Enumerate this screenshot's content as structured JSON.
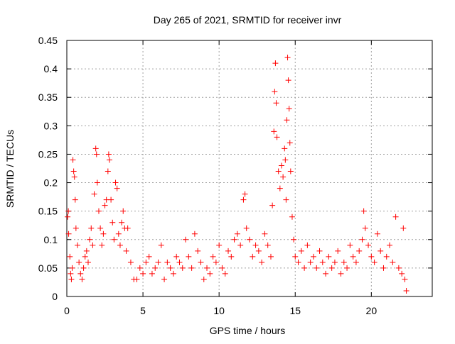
{
  "chart_data": {
    "type": "scatter",
    "title": "Day 265 of 2021, SRMTID for receiver invr",
    "xlabel": "GPS time / hours",
    "ylabel": "SRMTID / TECUs",
    "xlim": [
      0,
      24
    ],
    "ylim": [
      0,
      0.45
    ],
    "xticks": [
      0,
      5,
      10,
      15,
      20
    ],
    "yticks": [
      0,
      0.05,
      0.1,
      0.15,
      0.2,
      0.25,
      0.3,
      0.35,
      0.4,
      0.45
    ],
    "grid": true,
    "legend": "none",
    "marker": "+",
    "series": [
      {
        "color": "#ff0000",
        "points": [
          [
            0.05,
            0.14
          ],
          [
            0.1,
            0.15
          ],
          [
            0.12,
            0.11
          ],
          [
            0.2,
            0.07
          ],
          [
            0.25,
            0.04
          ],
          [
            0.3,
            0.03
          ],
          [
            0.35,
            0.05
          ],
          [
            0.4,
            0.24
          ],
          [
            0.45,
            0.22
          ],
          [
            0.5,
            0.21
          ],
          [
            0.55,
            0.17
          ],
          [
            0.6,
            0.12
          ],
          [
            0.7,
            0.09
          ],
          [
            0.8,
            0.06
          ],
          [
            0.9,
            0.04
          ],
          [
            1.0,
            0.03
          ],
          [
            1.1,
            0.05
          ],
          [
            1.2,
            0.07
          ],
          [
            1.3,
            0.08
          ],
          [
            1.4,
            0.06
          ],
          [
            1.5,
            0.1
          ],
          [
            1.6,
            0.12
          ],
          [
            1.7,
            0.09
          ],
          [
            1.8,
            0.18
          ],
          [
            1.9,
            0.26
          ],
          [
            1.95,
            0.25
          ],
          [
            2.0,
            0.2
          ],
          [
            2.1,
            0.15
          ],
          [
            2.2,
            0.12
          ],
          [
            2.3,
            0.09
          ],
          [
            2.4,
            0.11
          ],
          [
            2.5,
            0.16
          ],
          [
            2.6,
            0.17
          ],
          [
            2.7,
            0.22
          ],
          [
            2.75,
            0.25
          ],
          [
            2.8,
            0.24
          ],
          [
            2.9,
            0.17
          ],
          [
            3.0,
            0.13
          ],
          [
            3.1,
            0.1
          ],
          [
            3.2,
            0.2
          ],
          [
            3.3,
            0.19
          ],
          [
            3.4,
            0.11
          ],
          [
            3.5,
            0.09
          ],
          [
            3.6,
            0.13
          ],
          [
            3.7,
            0.15
          ],
          [
            3.8,
            0.12
          ],
          [
            3.9,
            0.08
          ],
          [
            4.0,
            0.12
          ],
          [
            4.2,
            0.06
          ],
          [
            4.4,
            0.03
          ],
          [
            4.6,
            0.03
          ],
          [
            4.8,
            0.05
          ],
          [
            5.0,
            0.04
          ],
          [
            5.2,
            0.06
          ],
          [
            5.4,
            0.07
          ],
          [
            5.6,
            0.04
          ],
          [
            5.8,
            0.05
          ],
          [
            6.0,
            0.06
          ],
          [
            6.2,
            0.09
          ],
          [
            6.4,
            0.03
          ],
          [
            6.6,
            0.06
          ],
          [
            6.8,
            0.05
          ],
          [
            7.0,
            0.04
          ],
          [
            7.2,
            0.07
          ],
          [
            7.4,
            0.06
          ],
          [
            7.6,
            0.05
          ],
          [
            7.8,
            0.1
          ],
          [
            8.0,
            0.07
          ],
          [
            8.2,
            0.05
          ],
          [
            8.4,
            0.11
          ],
          [
            8.6,
            0.08
          ],
          [
            8.8,
            0.06
          ],
          [
            9.0,
            0.03
          ],
          [
            9.2,
            0.05
          ],
          [
            9.4,
            0.04
          ],
          [
            9.6,
            0.07
          ],
          [
            9.8,
            0.06
          ],
          [
            10.0,
            0.09
          ],
          [
            10.2,
            0.05
          ],
          [
            10.4,
            0.04
          ],
          [
            10.6,
            0.08
          ],
          [
            10.8,
            0.07
          ],
          [
            11.0,
            0.1
          ],
          [
            11.2,
            0.11
          ],
          [
            11.4,
            0.09
          ],
          [
            11.6,
            0.17
          ],
          [
            11.7,
            0.18
          ],
          [
            11.8,
            0.12
          ],
          [
            12.0,
            0.1
          ],
          [
            12.2,
            0.07
          ],
          [
            12.4,
            0.09
          ],
          [
            12.6,
            0.08
          ],
          [
            12.8,
            0.06
          ],
          [
            13.0,
            0.11
          ],
          [
            13.2,
            0.09
          ],
          [
            13.4,
            0.07
          ],
          [
            13.5,
            0.16
          ],
          [
            13.6,
            0.29
          ],
          [
            13.65,
            0.36
          ],
          [
            13.7,
            0.41
          ],
          [
            13.75,
            0.34
          ],
          [
            13.8,
            0.28
          ],
          [
            13.9,
            0.22
          ],
          [
            14.0,
            0.19
          ],
          [
            14.1,
            0.23
          ],
          [
            14.2,
            0.21
          ],
          [
            14.3,
            0.26
          ],
          [
            14.35,
            0.24
          ],
          [
            14.4,
            0.17
          ],
          [
            14.45,
            0.31
          ],
          [
            14.5,
            0.42
          ],
          [
            14.55,
            0.38
          ],
          [
            14.6,
            0.33
          ],
          [
            14.65,
            0.27
          ],
          [
            14.7,
            0.22
          ],
          [
            14.8,
            0.14
          ],
          [
            14.9,
            0.1
          ],
          [
            15.0,
            0.07
          ],
          [
            15.2,
            0.06
          ],
          [
            15.4,
            0.08
          ],
          [
            15.6,
            0.05
          ],
          [
            15.8,
            0.09
          ],
          [
            16.0,
            0.06
          ],
          [
            16.2,
            0.07
          ],
          [
            16.4,
            0.05
          ],
          [
            16.6,
            0.08
          ],
          [
            16.8,
            0.06
          ],
          [
            17.0,
            0.04
          ],
          [
            17.2,
            0.07
          ],
          [
            17.4,
            0.05
          ],
          [
            17.6,
            0.06
          ],
          [
            17.8,
            0.08
          ],
          [
            18.0,
            0.04
          ],
          [
            18.2,
            0.06
          ],
          [
            18.4,
            0.05
          ],
          [
            18.6,
            0.09
          ],
          [
            18.8,
            0.07
          ],
          [
            19.0,
            0.06
          ],
          [
            19.2,
            0.08
          ],
          [
            19.4,
            0.1
          ],
          [
            19.5,
            0.15
          ],
          [
            19.6,
            0.12
          ],
          [
            19.8,
            0.09
          ],
          [
            20.0,
            0.07
          ],
          [
            20.2,
            0.06
          ],
          [
            20.4,
            0.11
          ],
          [
            20.6,
            0.08
          ],
          [
            20.8,
            0.05
          ],
          [
            21.0,
            0.07
          ],
          [
            21.2,
            0.09
          ],
          [
            21.4,
            0.06
          ],
          [
            21.6,
            0.14
          ],
          [
            21.8,
            0.05
          ],
          [
            22.0,
            0.04
          ],
          [
            22.1,
            0.12
          ],
          [
            22.2,
            0.03
          ],
          [
            22.3,
            0.01
          ]
        ]
      }
    ]
  }
}
